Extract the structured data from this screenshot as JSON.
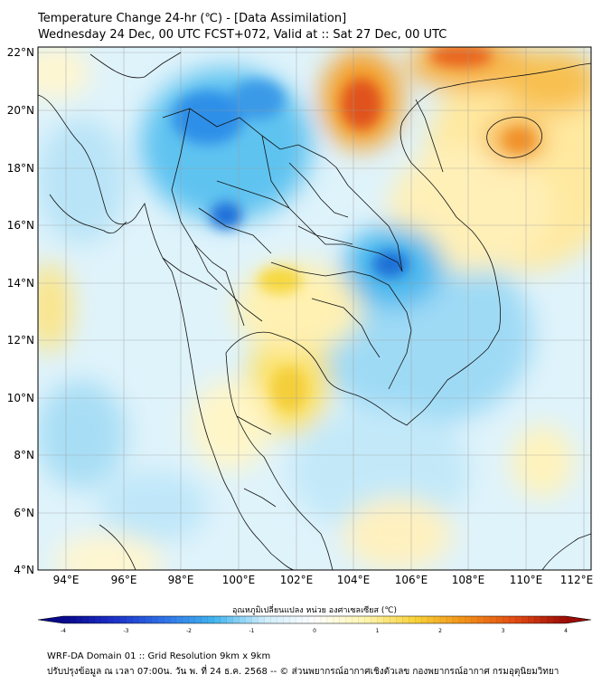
{
  "header": {
    "title_line1": "Temperature Change 24-hr (℃) - [Data Assimilation]",
    "title_line2": "Wednesday 24 Dec, 00 UTC FCST+072, Valid at :: Sat 27 Dec, 00 UTC"
  },
  "map": {
    "lat_labels": [
      "22°N",
      "20°N",
      "18°N",
      "16°N",
      "14°N",
      "12°N",
      "10°N",
      "8°N",
      "6°N",
      "4°N"
    ],
    "lon_labels": [
      "94°E",
      "96°E",
      "98°E",
      "100°E",
      "102°E",
      "104°E",
      "106°E",
      "108°E",
      "110°E",
      "112°E"
    ]
  },
  "colorbar": {
    "title": "อุณหภูมิเปลี่ยนแปลง หน่วย องศาเซลเซียส (℃)",
    "ticks": [
      "-4",
      "-3",
      "-2",
      "-1",
      "0",
      "1",
      "2",
      "3",
      "4"
    ],
    "colors": [
      "#08088a",
      "#1c2fc8",
      "#2f72e8",
      "#42b4ee",
      "#cfeefc",
      "#ffffff",
      "#fff6b0",
      "#f8d23a",
      "#f29018",
      "#e24a14",
      "#9a0c06"
    ]
  },
  "footer": {
    "line1": "WRF-DA Domain 01 :: Grid Resolution 9km x 9km",
    "line2": "ปรับปรุงข้อมูล ณ เวลา 07:00น. วัน พ. ที่ 24 ธ.ค. 2568 -- © ส่วนพยากรณ์อากาศเชิงตัวเลข กองพยากรณ์อากาศ กรมอุตุนิยมวิทยา"
  }
}
